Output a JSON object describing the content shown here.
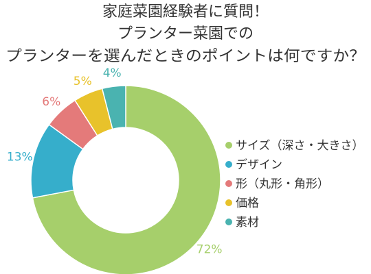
{
  "chart_data": {
    "type": "pie",
    "donut": true,
    "title_lines": [
      "家庭菜園経験者に質問！",
      "プランター菜園での",
      "プランターを選んだときのポイントは何ですか？"
    ],
    "categories": [
      "サイズ（深さ・大きさ）",
      "デザイン",
      "形（丸形・角形）",
      "価格",
      "素材"
    ],
    "values": [
      72,
      13,
      6,
      5,
      4
    ],
    "value_labels": [
      "72%",
      "13%",
      "6%",
      "5%",
      "4%"
    ],
    "colors": [
      "#a6cf6b",
      "#36aecb",
      "#e47a7a",
      "#e8c22b",
      "#4ab3b0"
    ],
    "legend_position": "right",
    "start": "top",
    "direction": "clockwise"
  }
}
